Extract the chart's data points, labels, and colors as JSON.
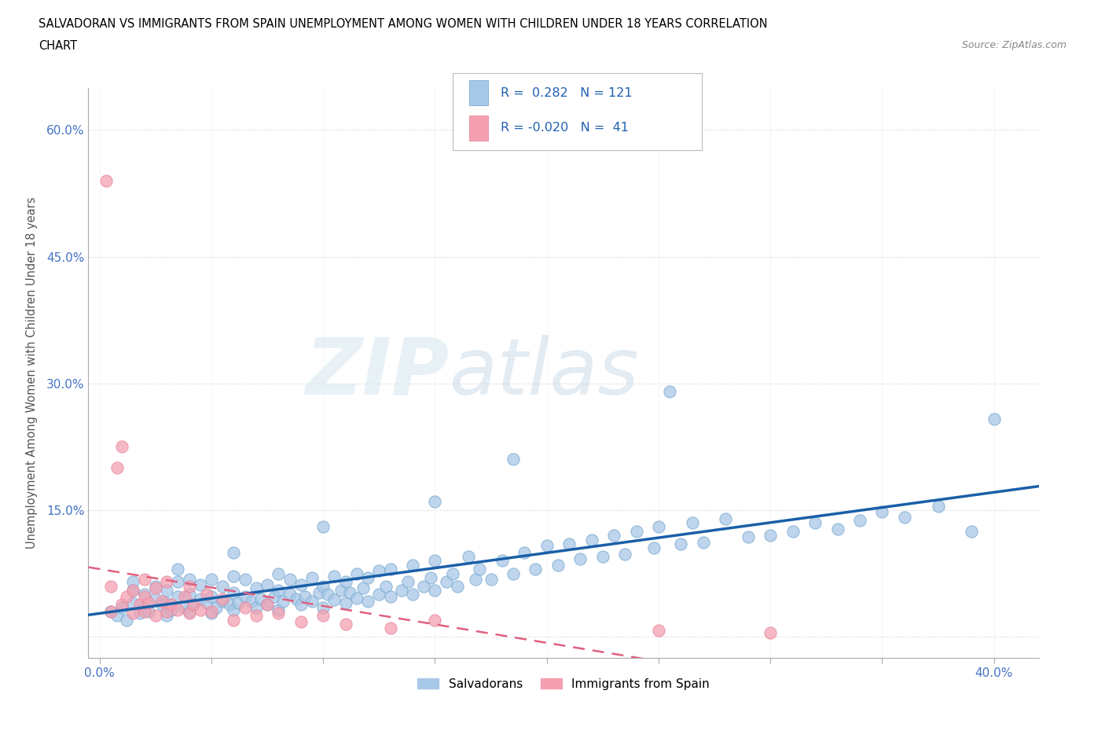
{
  "title_line1": "SALVADORAN VS IMMIGRANTS FROM SPAIN UNEMPLOYMENT AMONG WOMEN WITH CHILDREN UNDER 18 YEARS CORRELATION",
  "title_line2": "CHART",
  "source": "Source: ZipAtlas.com",
  "ylabel": "Unemployment Among Women with Children Under 18 years",
  "xlim": [
    -0.005,
    0.42
  ],
  "ylim": [
    -0.025,
    0.65
  ],
  "background_color": "#ffffff",
  "grid_color": "#d0d0d0",
  "watermark_zip": "ZIP",
  "watermark_atlas": "atlas",
  "legend_salvadorans": "Salvadorans",
  "legend_spain": "Immigrants from Spain",
  "R_salv": 0.282,
  "N_salv": 121,
  "R_spain": -0.02,
  "N_spain": 41,
  "blue_color": "#a8c8e8",
  "pink_color": "#f4a0b0",
  "blue_line_color": "#1a5fa8",
  "pink_line_color": "#e06080",
  "blue_marker_edge": "#7aaad0",
  "pink_marker_edge": "#e888a0",
  "salv_x": [
    0.005,
    0.008,
    0.01,
    0.012,
    0.015,
    0.015,
    0.018,
    0.02,
    0.02,
    0.022,
    0.025,
    0.025,
    0.028,
    0.03,
    0.03,
    0.03,
    0.032,
    0.035,
    0.035,
    0.038,
    0.04,
    0.04,
    0.04,
    0.042,
    0.045,
    0.045,
    0.048,
    0.05,
    0.05,
    0.05,
    0.052,
    0.055,
    0.055,
    0.058,
    0.06,
    0.06,
    0.06,
    0.062,
    0.065,
    0.065,
    0.068,
    0.07,
    0.07,
    0.072,
    0.075,
    0.075,
    0.078,
    0.08,
    0.08,
    0.08,
    0.082,
    0.085,
    0.085,
    0.088,
    0.09,
    0.09,
    0.092,
    0.095,
    0.095,
    0.098,
    0.1,
    0.1,
    0.102,
    0.105,
    0.105,
    0.108,
    0.11,
    0.11,
    0.112,
    0.115,
    0.115,
    0.118,
    0.12,
    0.12,
    0.125,
    0.125,
    0.128,
    0.13,
    0.13,
    0.135,
    0.138,
    0.14,
    0.14,
    0.145,
    0.148,
    0.15,
    0.15,
    0.155,
    0.158,
    0.16,
    0.165,
    0.168,
    0.17,
    0.175,
    0.18,
    0.185,
    0.19,
    0.195,
    0.2,
    0.205,
    0.21,
    0.215,
    0.22,
    0.225,
    0.23,
    0.235,
    0.24,
    0.248,
    0.25,
    0.26,
    0.265,
    0.27,
    0.28,
    0.29,
    0.3,
    0.31,
    0.32,
    0.33,
    0.34,
    0.35,
    0.36,
    0.375,
    0.39,
    0.4,
    0.255,
    0.185,
    0.15,
    0.1,
    0.06,
    0.035,
    0.015
  ],
  "salv_y": [
    0.03,
    0.025,
    0.035,
    0.02,
    0.04,
    0.055,
    0.028,
    0.035,
    0.05,
    0.03,
    0.045,
    0.06,
    0.038,
    0.025,
    0.04,
    0.055,
    0.032,
    0.048,
    0.065,
    0.035,
    0.03,
    0.05,
    0.068,
    0.038,
    0.045,
    0.062,
    0.04,
    0.028,
    0.048,
    0.068,
    0.035,
    0.042,
    0.06,
    0.038,
    0.032,
    0.052,
    0.072,
    0.04,
    0.048,
    0.068,
    0.042,
    0.035,
    0.058,
    0.045,
    0.038,
    0.062,
    0.048,
    0.032,
    0.055,
    0.075,
    0.042,
    0.05,
    0.068,
    0.045,
    0.038,
    0.062,
    0.048,
    0.042,
    0.07,
    0.052,
    0.035,
    0.06,
    0.05,
    0.044,
    0.072,
    0.055,
    0.04,
    0.065,
    0.052,
    0.046,
    0.075,
    0.058,
    0.042,
    0.07,
    0.05,
    0.078,
    0.06,
    0.048,
    0.08,
    0.055,
    0.065,
    0.05,
    0.085,
    0.06,
    0.07,
    0.055,
    0.09,
    0.065,
    0.075,
    0.06,
    0.095,
    0.068,
    0.08,
    0.068,
    0.09,
    0.075,
    0.1,
    0.08,
    0.108,
    0.085,
    0.11,
    0.092,
    0.115,
    0.095,
    0.12,
    0.098,
    0.125,
    0.105,
    0.13,
    0.11,
    0.135,
    0.112,
    0.14,
    0.118,
    0.12,
    0.125,
    0.135,
    0.128,
    0.138,
    0.148,
    0.142,
    0.155,
    0.125,
    0.258,
    0.29,
    0.21,
    0.16,
    0.13,
    0.1,
    0.08,
    0.065
  ],
  "spain_x": [
    0.003,
    0.005,
    0.005,
    0.008,
    0.01,
    0.01,
    0.012,
    0.015,
    0.015,
    0.018,
    0.02,
    0.02,
    0.02,
    0.022,
    0.025,
    0.025,
    0.028,
    0.03,
    0.03,
    0.032,
    0.035,
    0.038,
    0.04,
    0.04,
    0.042,
    0.045,
    0.048,
    0.05,
    0.055,
    0.06,
    0.065,
    0.07,
    0.075,
    0.08,
    0.09,
    0.1,
    0.11,
    0.13,
    0.15,
    0.25,
    0.3
  ],
  "spain_y": [
    0.54,
    0.06,
    0.03,
    0.2,
    0.225,
    0.038,
    0.048,
    0.028,
    0.055,
    0.038,
    0.03,
    0.048,
    0.068,
    0.04,
    0.025,
    0.058,
    0.042,
    0.03,
    0.065,
    0.038,
    0.032,
    0.048,
    0.028,
    0.06,
    0.038,
    0.032,
    0.05,
    0.03,
    0.045,
    0.02,
    0.035,
    0.025,
    0.038,
    0.028,
    0.018,
    0.025,
    0.015,
    0.01,
    0.02,
    0.008,
    0.005
  ]
}
